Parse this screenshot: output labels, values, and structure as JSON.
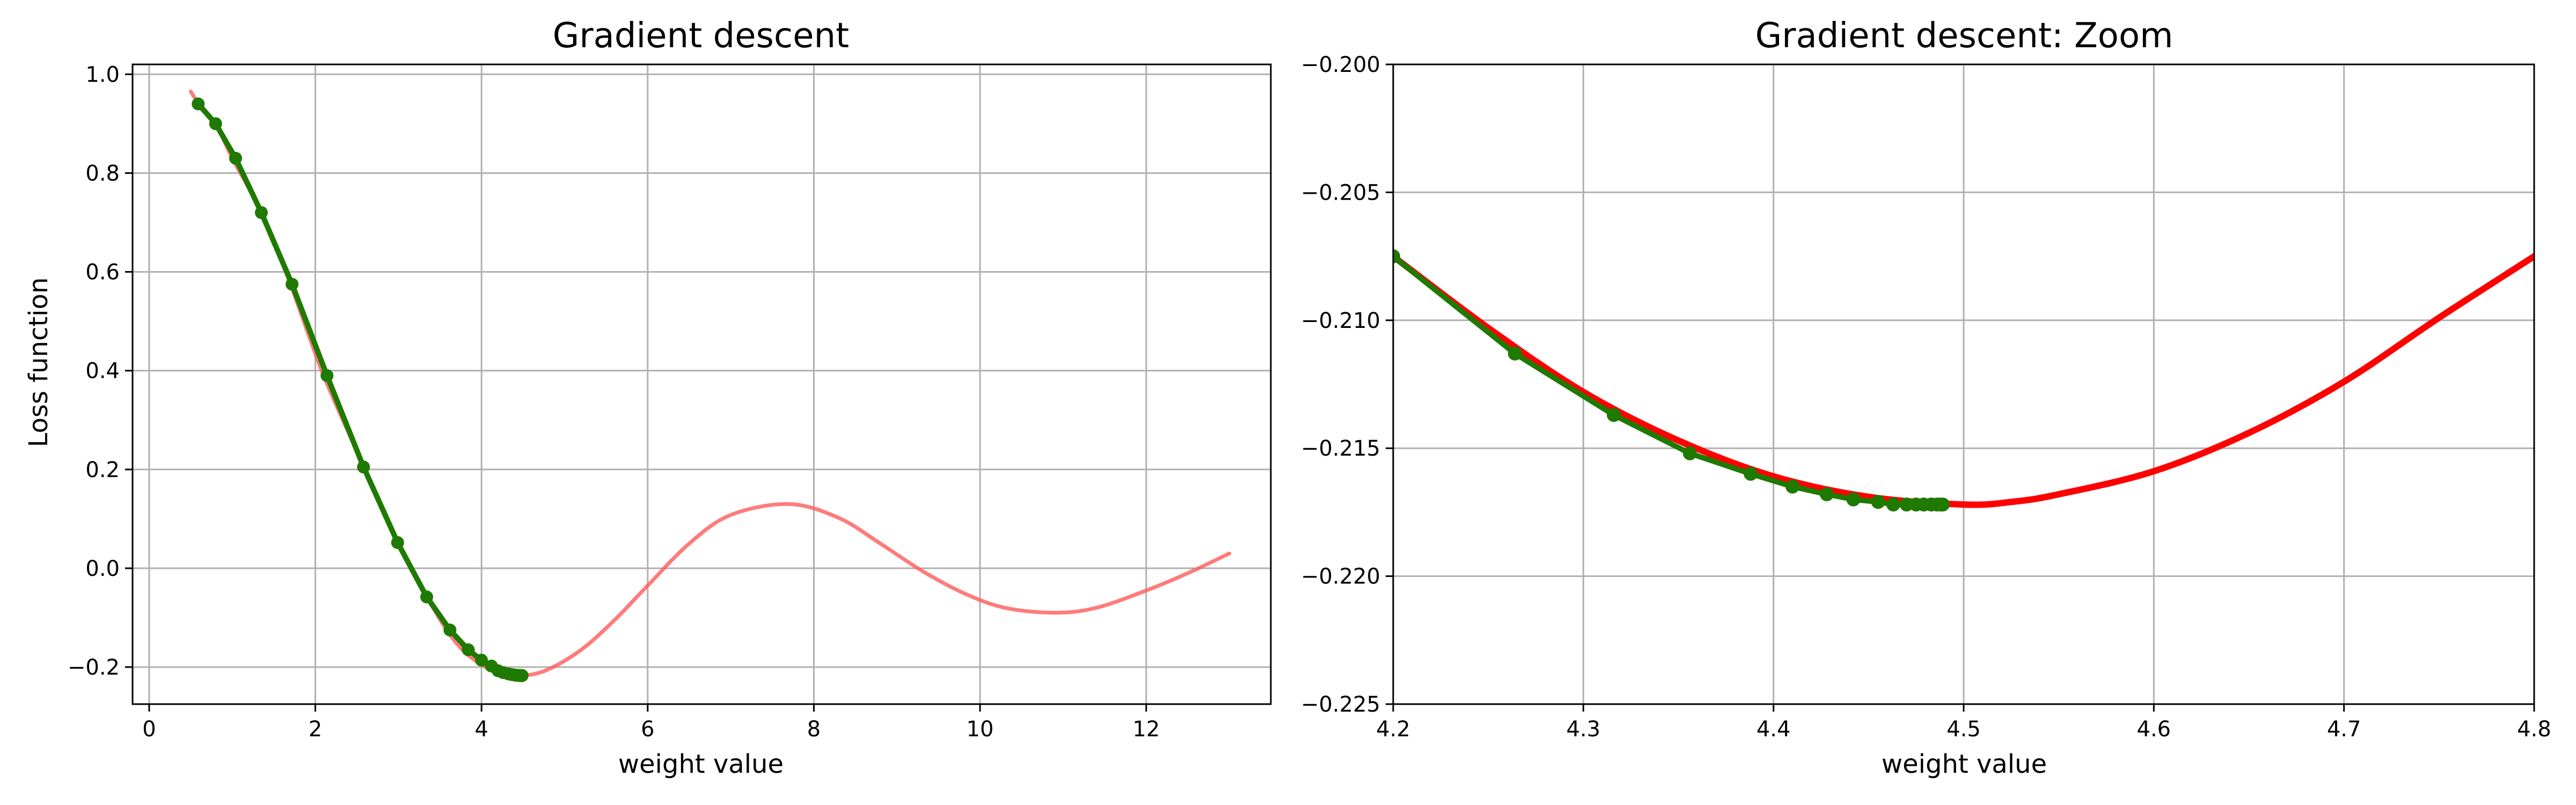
{
  "chart_data": [
    {
      "type": "line",
      "title": "Gradient descent",
      "xlabel": "weight value",
      "ylabel": "Loss function",
      "xlim": [
        -0.2,
        13.5
      ],
      "ylim": [
        -0.275,
        1.02
      ],
      "xticks": [
        0,
        2,
        4,
        6,
        8,
        10,
        12
      ],
      "yticks": [
        -0.2,
        0.0,
        0.2,
        0.4,
        0.6,
        0.8,
        1.0
      ],
      "xtick_labels": [
        "0",
        "2",
        "4",
        "6",
        "8",
        "10",
        "12"
      ],
      "ytick_labels": [
        "−0.2",
        "0.0",
        "0.2",
        "0.4",
        "0.6",
        "0.8",
        "1.0"
      ],
      "grid": true,
      "legend": "none",
      "curve": {
        "color": "#ff5a5a",
        "x_range": [
          0.5,
          13.0
        ],
        "x": [
          0.5,
          0.6,
          0.8,
          1.0,
          1.35,
          1.7,
          2.1,
          2.6,
          3.0,
          3.35,
          3.6,
          3.8,
          4.0,
          4.2,
          4.5,
          4.8,
          5.2,
          5.6,
          6.0,
          6.5,
          7.0,
          7.7,
          8.3,
          8.8,
          9.3,
          9.8,
          10.3,
          10.9,
          11.4,
          12.0,
          12.5,
          13.0
        ],
        "y": [
          0.965,
          0.94,
          0.9,
          0.83,
          0.72,
          0.575,
          0.39,
          0.2,
          0.05,
          -0.06,
          -0.13,
          -0.17,
          -0.195,
          -0.212,
          -0.217,
          -0.205,
          -0.165,
          -0.105,
          -0.035,
          0.05,
          0.108,
          0.13,
          0.102,
          0.05,
          -0.005,
          -0.05,
          -0.08,
          -0.09,
          -0.08,
          -0.045,
          -0.01,
          0.03
        ]
      },
      "series": [
        {
          "color": "#1e7a00",
          "x": [
            0.59,
            0.8,
            1.04,
            1.35,
            1.72,
            2.14,
            2.58,
            2.99,
            3.34,
            3.62,
            3.84,
            4.0,
            4.12,
            4.2,
            4.26,
            4.32,
            4.36,
            4.39,
            4.41,
            4.43,
            4.44,
            4.455,
            4.465,
            4.47,
            4.475,
            4.48,
            4.484,
            4.487,
            4.489
          ],
          "y": [
            0.94,
            0.9,
            0.83,
            0.72,
            0.575,
            0.39,
            0.205,
            0.052,
            -0.058,
            -0.125,
            -0.165,
            -0.186,
            -0.198,
            -0.2075,
            -0.2112,
            -0.2137,
            -0.2151,
            -0.2159,
            -0.2165,
            -0.2168,
            -0.217,
            -0.2171,
            -0.2172,
            -0.2172,
            -0.2172,
            -0.2172,
            -0.2172,
            -0.2172,
            -0.2172
          ]
        }
      ]
    },
    {
      "type": "line",
      "title": "Gradient descent: Zoom",
      "xlabel": "weight value",
      "ylabel": "",
      "xlim": [
        4.2,
        4.8
      ],
      "ylim": [
        -0.225,
        -0.2
      ],
      "xticks": [
        4.2,
        4.3,
        4.4,
        4.5,
        4.6,
        4.7,
        4.8
      ],
      "yticks": [
        -0.225,
        -0.22,
        -0.215,
        -0.21,
        -0.205,
        -0.2
      ],
      "xtick_labels": [
        "4.2",
        "4.3",
        "4.4",
        "4.5",
        "4.6",
        "4.7",
        "4.8"
      ],
      "ytick_labels": [
        "−0.225",
        "−0.220",
        "−0.215",
        "−0.210",
        "−0.205",
        "−0.200"
      ],
      "grid": true,
      "legend": "none",
      "curve": {
        "color": "#ff0000",
        "x": [
          4.2,
          4.25,
          4.3,
          4.35,
          4.4,
          4.45,
          4.5,
          4.525,
          4.55,
          4.6,
          4.65,
          4.7,
          4.75,
          4.8
        ],
        "y": [
          -0.2075,
          -0.2103,
          -0.2128,
          -0.2147,
          -0.2161,
          -0.2169,
          -0.2172,
          -0.2171,
          -0.2168,
          -0.2159,
          -0.2144,
          -0.2124,
          -0.2099,
          -0.2075
        ]
      },
      "series": [
        {
          "color": "#1e7a00",
          "x": [
            4.2,
            4.264,
            4.316,
            4.356,
            4.388,
            4.41,
            4.428,
            4.442,
            4.455,
            4.463,
            4.47,
            4.475,
            4.479,
            4.483,
            4.486,
            4.488,
            4.489
          ],
          "y": [
            -0.2075,
            -0.2113,
            -0.2137,
            -0.2152,
            -0.216,
            -0.2165,
            -0.2168,
            -0.217,
            -0.2171,
            -0.2172,
            -0.2172,
            -0.2172,
            -0.2172,
            -0.2172,
            -0.2172,
            -0.2172,
            -0.2172
          ]
        }
      ]
    }
  ]
}
